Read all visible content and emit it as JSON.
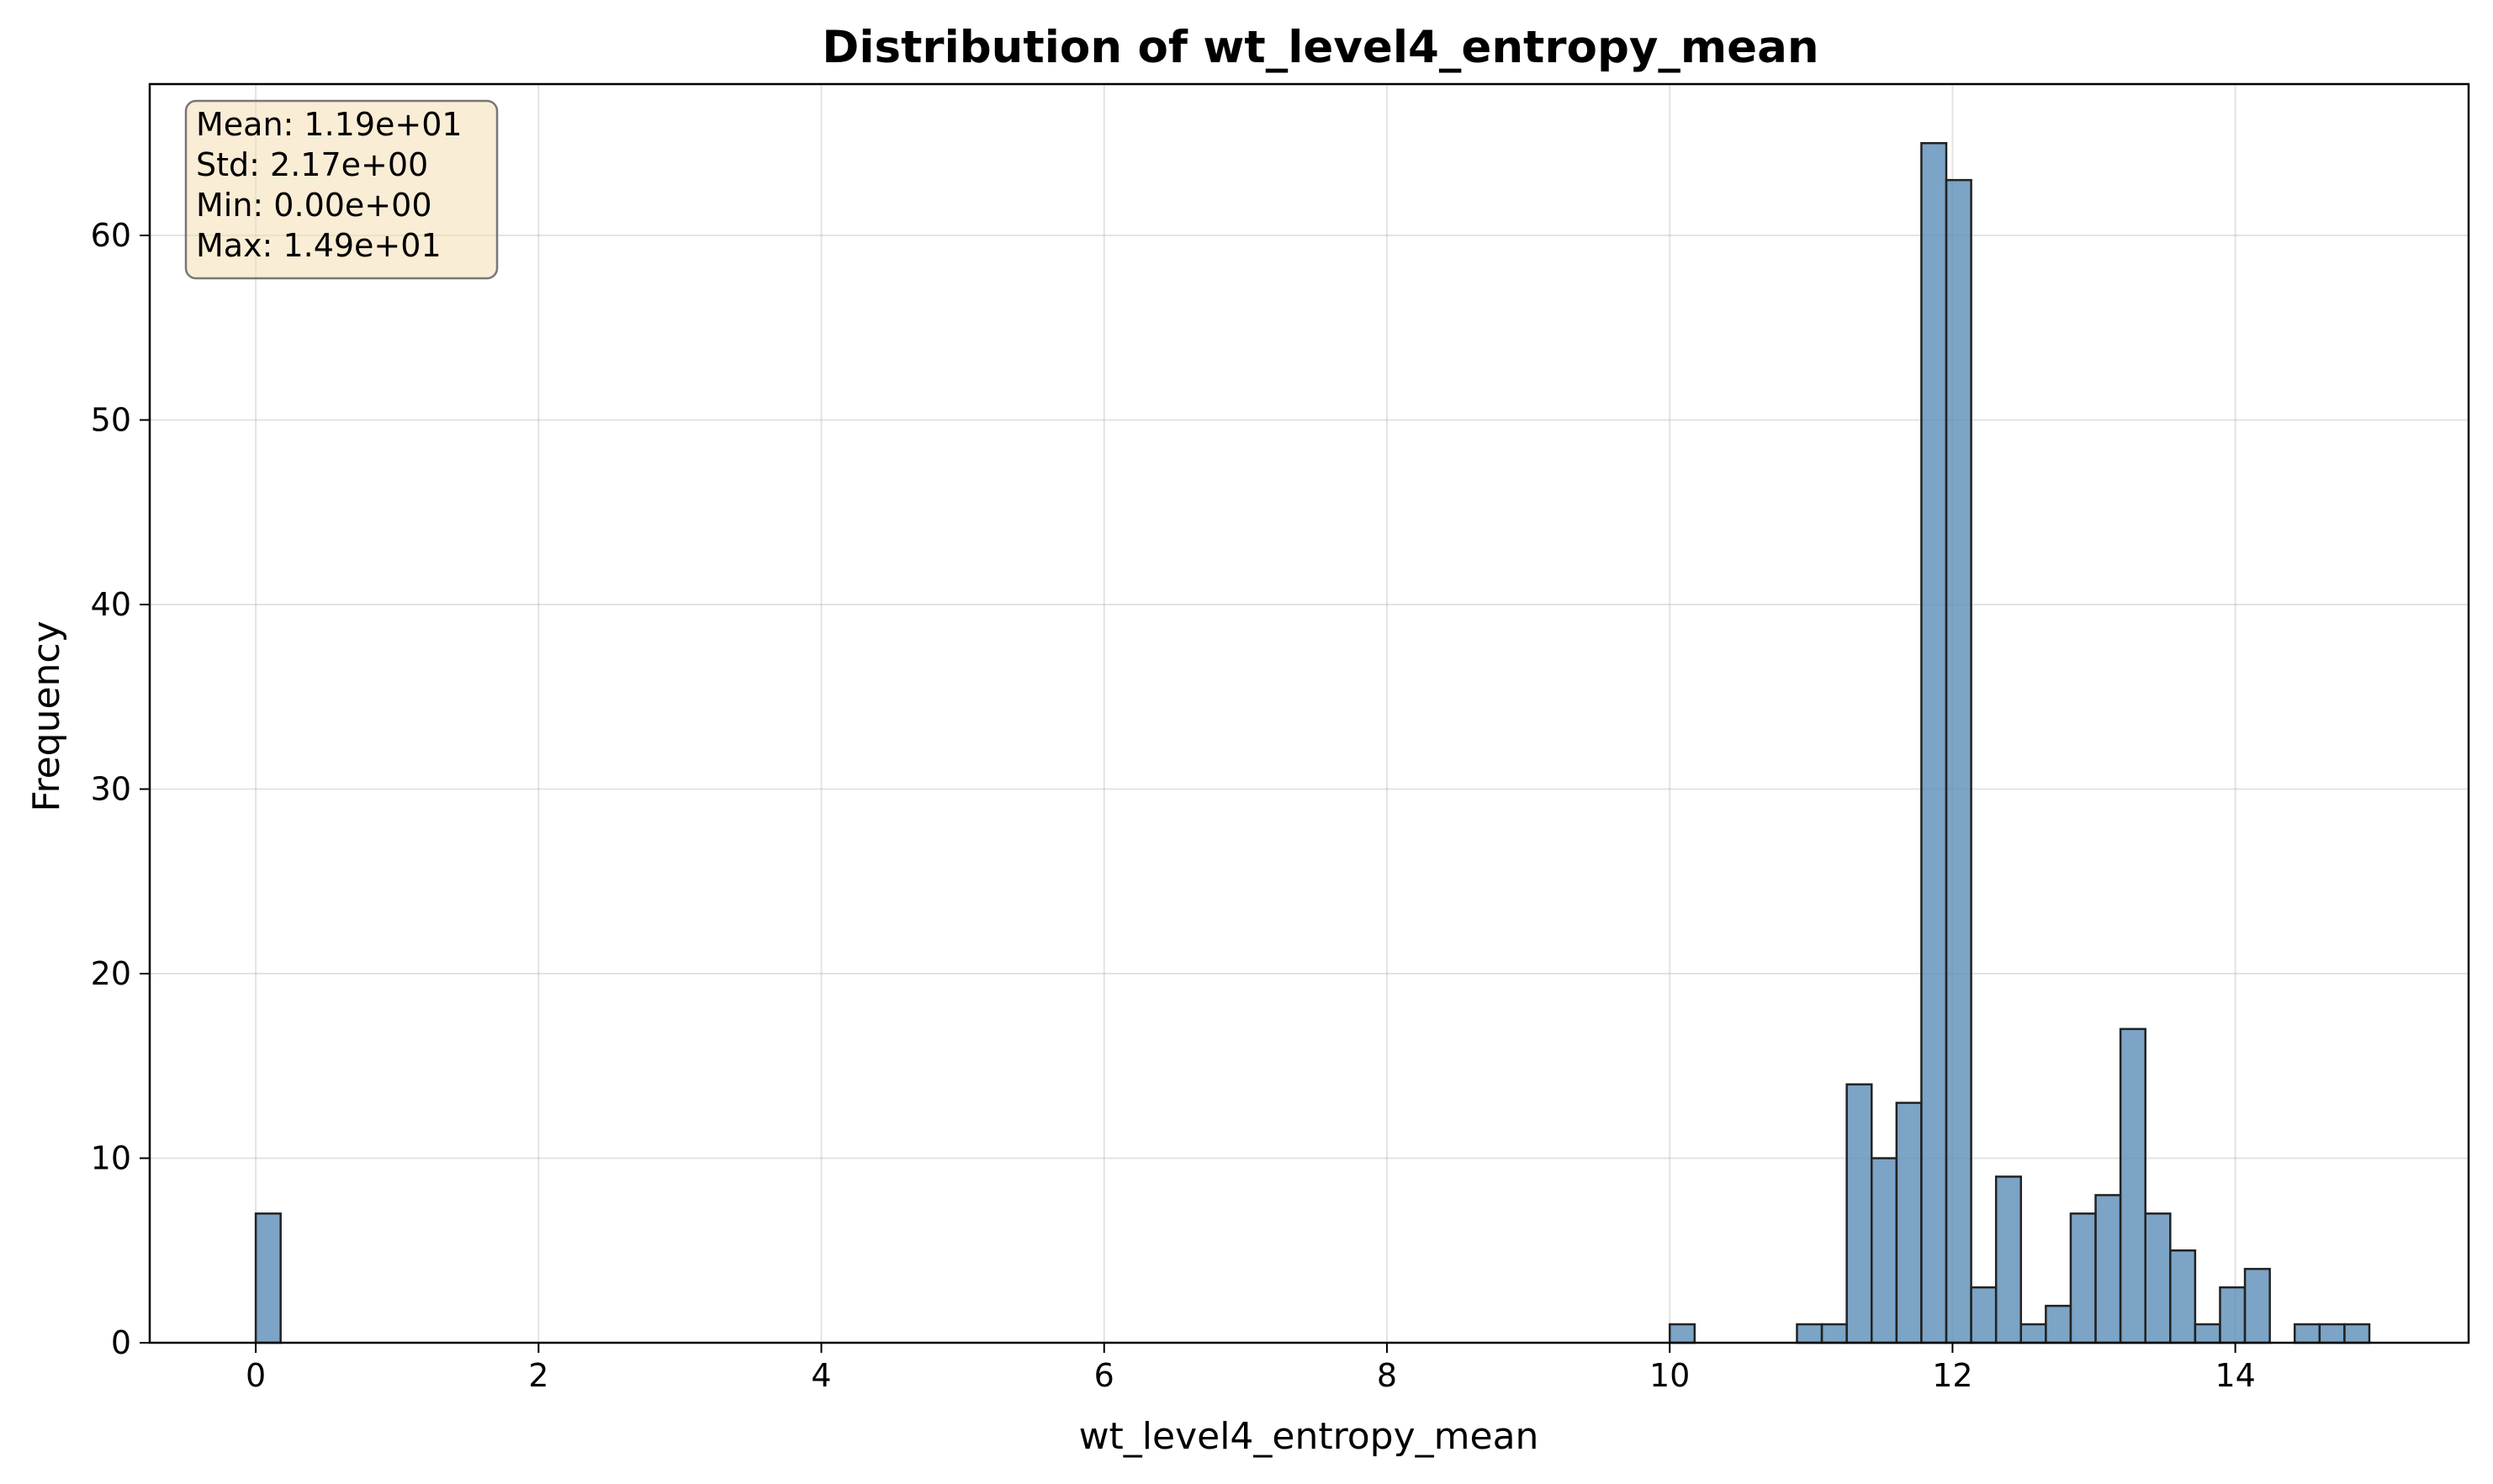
{
  "chart_data": {
    "type": "bar",
    "title": "Distribution of wt_level4_entropy_mean",
    "xlabel": "wt_level4_entropy_mean",
    "ylabel": "Frequency",
    "xlim": [
      -0.75,
      15.65
    ],
    "ylim": [
      0,
      68.2
    ],
    "xticks": [
      0,
      2,
      4,
      6,
      8,
      10,
      12,
      14
    ],
    "yticks": [
      0,
      10,
      20,
      30,
      40,
      50,
      60
    ],
    "grid": true,
    "bin_width": 0.176,
    "bins": [
      {
        "x": 0.0,
        "count": 7
      },
      {
        "x": 10.0,
        "count": 1
      },
      {
        "x": 10.9,
        "count": 1
      },
      {
        "x": 11.076,
        "count": 1
      },
      {
        "x": 11.252,
        "count": 14
      },
      {
        "x": 11.428,
        "count": 10
      },
      {
        "x": 11.604,
        "count": 13
      },
      {
        "x": 11.78,
        "count": 65
      },
      {
        "x": 11.956,
        "count": 63
      },
      {
        "x": 12.132,
        "count": 3
      },
      {
        "x": 12.308,
        "count": 9
      },
      {
        "x": 12.484,
        "count": 1
      },
      {
        "x": 12.66,
        "count": 2
      },
      {
        "x": 12.836,
        "count": 7
      },
      {
        "x": 13.012,
        "count": 8
      },
      {
        "x": 13.188,
        "count": 17
      },
      {
        "x": 13.364,
        "count": 7
      },
      {
        "x": 13.54,
        "count": 5
      },
      {
        "x": 13.716,
        "count": 1
      },
      {
        "x": 13.892,
        "count": 3
      },
      {
        "x": 14.068,
        "count": 4
      },
      {
        "x": 14.42,
        "count": 1
      },
      {
        "x": 14.596,
        "count": 1
      },
      {
        "x": 14.772,
        "count": 1
      }
    ],
    "bar_color": "#5b8db8",
    "stats_box": {
      "lines": [
        "Mean: 1.19e+01",
        "Std: 2.17e+00",
        "Min: 0.00e+00",
        "Max: 1.49e+01"
      ],
      "background": "#f5deb3",
      "placement": "top-left"
    }
  }
}
